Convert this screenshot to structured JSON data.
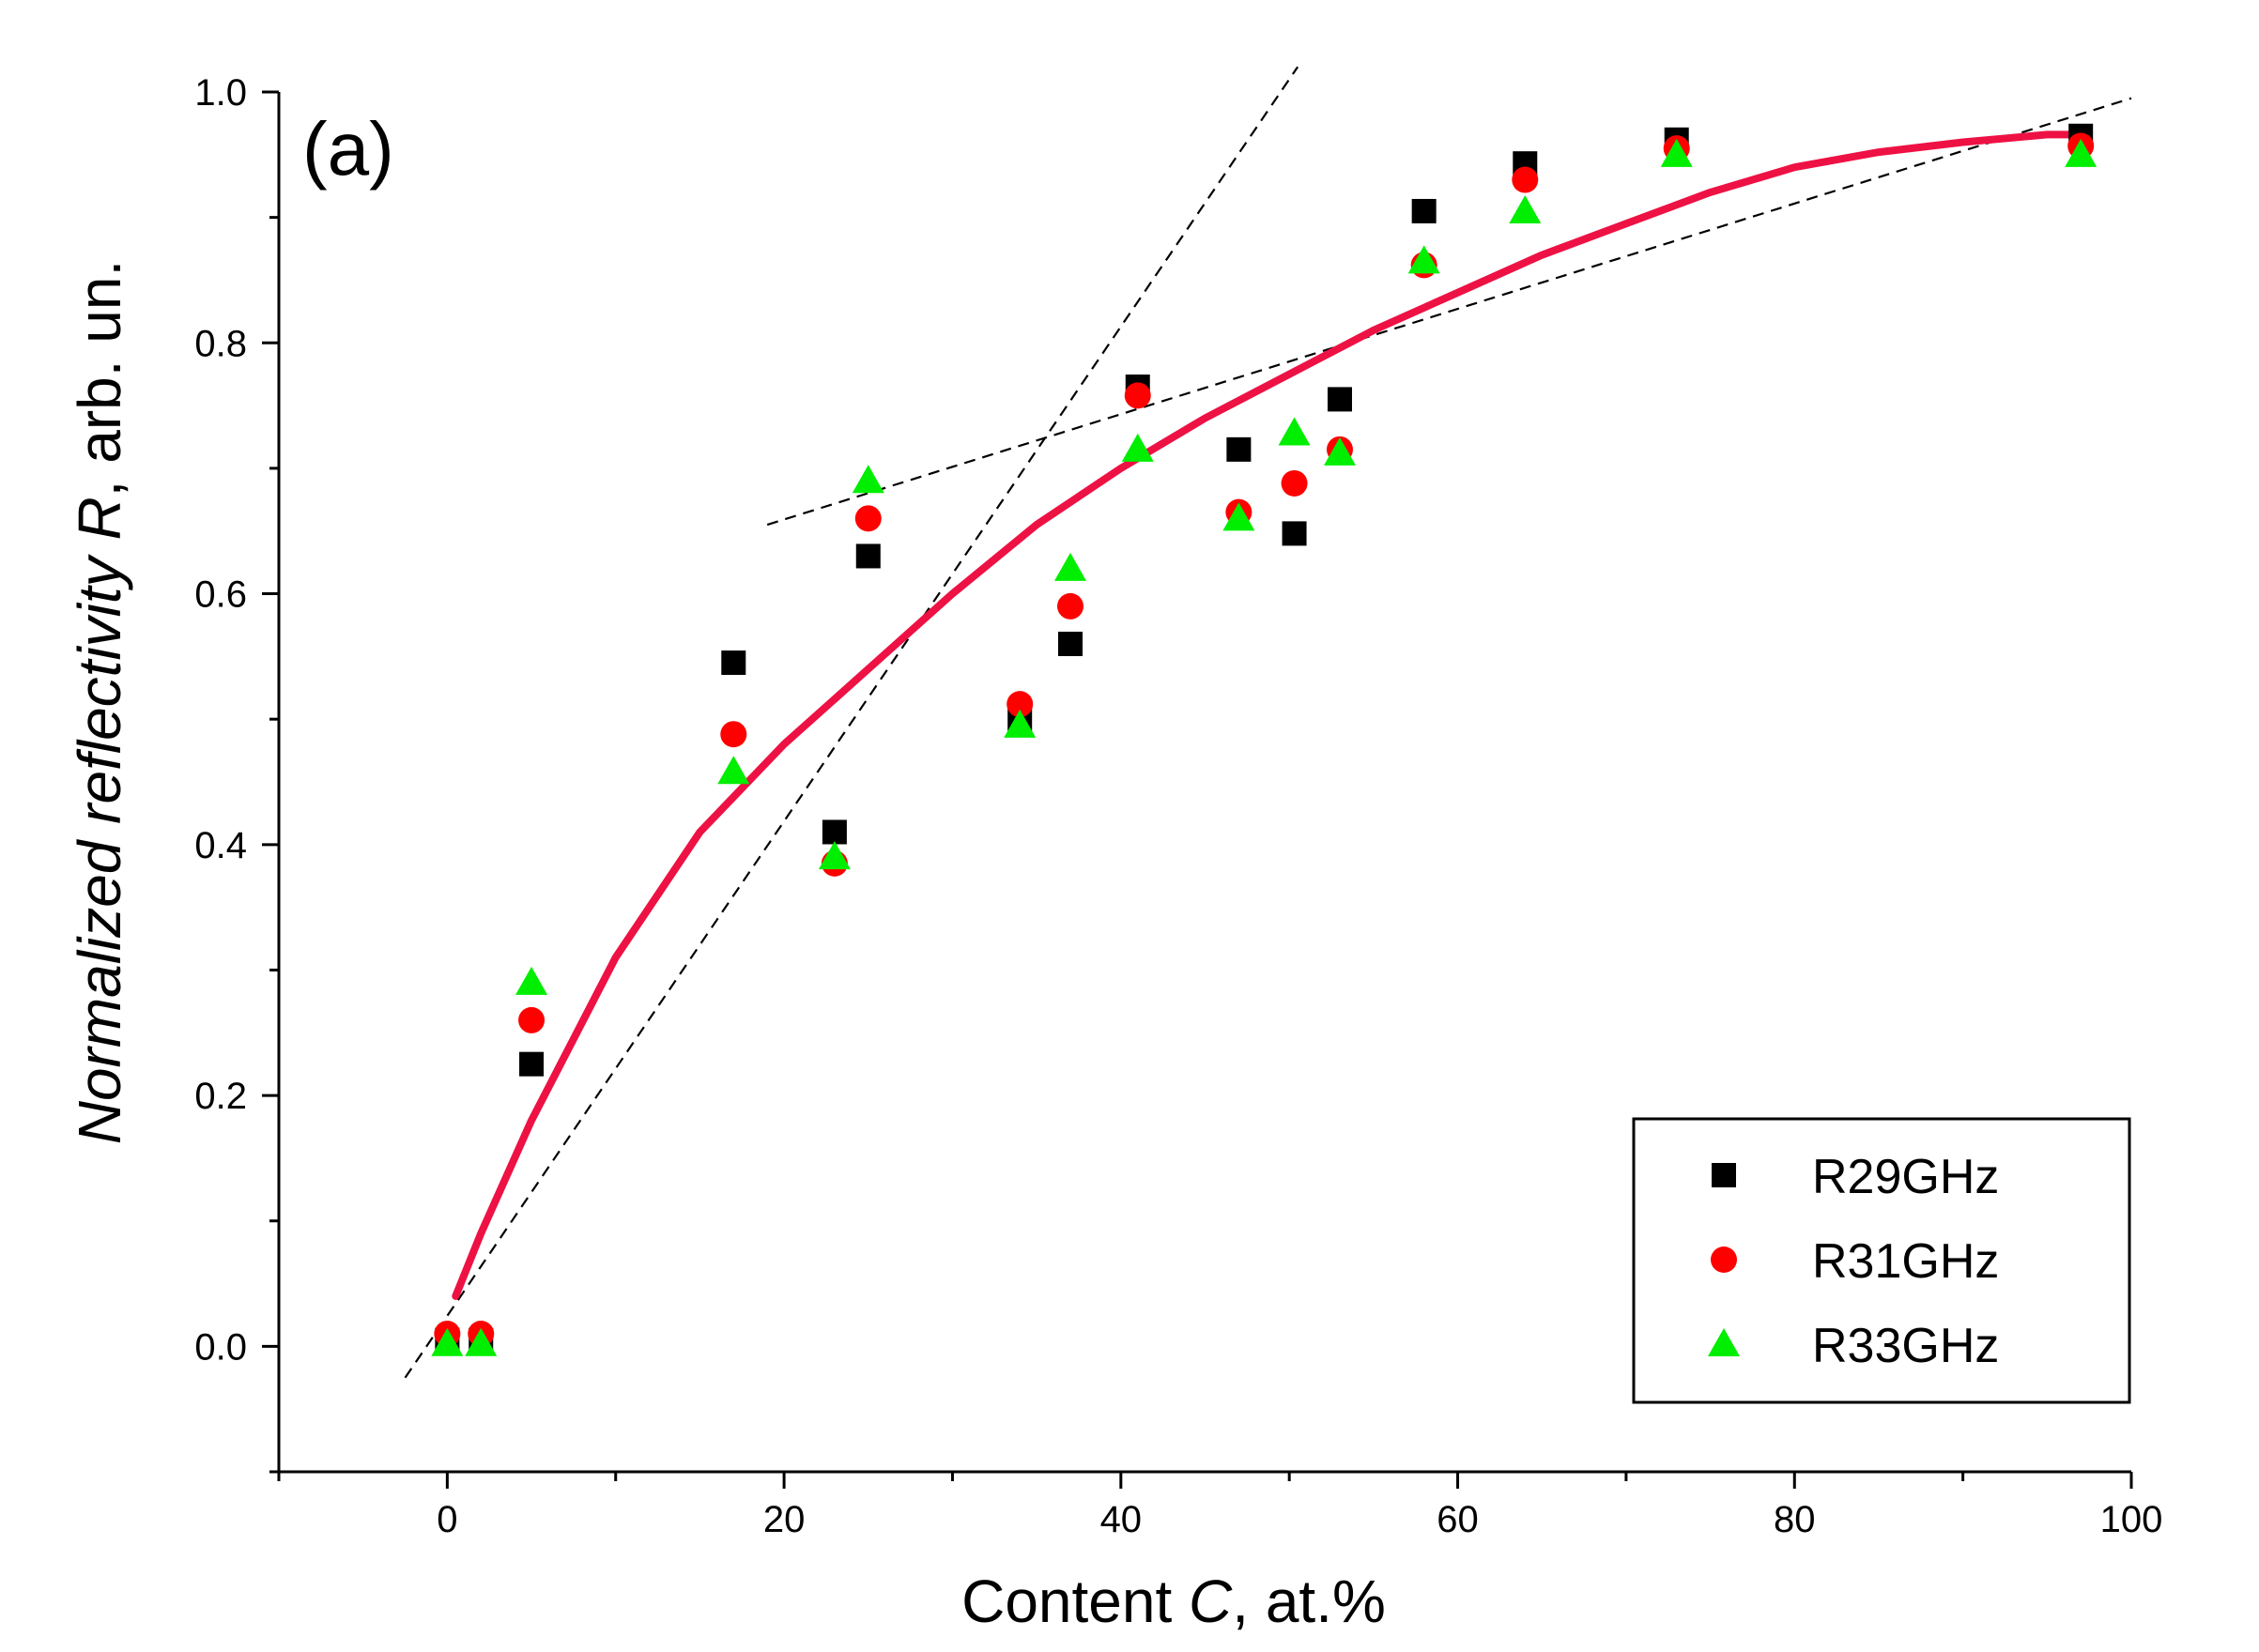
{
  "chart_data": {
    "type": "scatter",
    "panel_label": "(a)",
    "xlabel_prefix": "Content ",
    "xlabel_var": "C",
    "xlabel_suffix": ", at.%",
    "ylabel_prefix": "Normalized reflectivity ",
    "ylabel_var": "R",
    "ylabel_suffix": ", arb. un.",
    "xlim": [
      -10,
      100
    ],
    "ylim": [
      -0.1,
      1.0
    ],
    "x_ticks": [
      0,
      20,
      40,
      60,
      80,
      100
    ],
    "x_tick_labels": [
      "0",
      "20",
      "40",
      "60",
      "80",
      "100"
    ],
    "x_minor_ticks": [
      -10,
      10,
      30,
      50,
      70,
      90
    ],
    "y_ticks": [
      0.0,
      0.2,
      0.4,
      0.6,
      0.8,
      1.0
    ],
    "y_tick_labels": [
      "0.0",
      "0.2",
      "0.4",
      "0.6",
      "0.8",
      "1.0"
    ],
    "y_minor_ticks": [
      -0.1,
      0.1,
      0.3,
      0.5,
      0.7,
      0.9
    ],
    "legend_position": "bottom-right",
    "series": [
      {
        "name": "R29GHz",
        "marker": "square",
        "color": "#000000",
        "points": [
          [
            0,
            0.005
          ],
          [
            2,
            0.005
          ],
          [
            5,
            0.225
          ],
          [
            17,
            0.545
          ],
          [
            23,
            0.41
          ],
          [
            25,
            0.63
          ],
          [
            34,
            0.5
          ],
          [
            37,
            0.56
          ],
          [
            41,
            0.765
          ],
          [
            47,
            0.715
          ],
          [
            50.3,
            0.648
          ],
          [
            53,
            0.755
          ],
          [
            58,
            0.905
          ],
          [
            64,
            0.943
          ],
          [
            73,
            0.962
          ],
          [
            97,
            0.965
          ]
        ]
      },
      {
        "name": "R31GHz",
        "marker": "circle",
        "color": "#ff0000",
        "points": [
          [
            0,
            0.01
          ],
          [
            2,
            0.01
          ],
          [
            5,
            0.26
          ],
          [
            17,
            0.488
          ],
          [
            23,
            0.385
          ],
          [
            25,
            0.66
          ],
          [
            34,
            0.512
          ],
          [
            37,
            0.59
          ],
          [
            41,
            0.758
          ],
          [
            47,
            0.665
          ],
          [
            50.3,
            0.688
          ],
          [
            53,
            0.715
          ],
          [
            58,
            0.862
          ],
          [
            64,
            0.93
          ],
          [
            73,
            0.955
          ],
          [
            97,
            0.957
          ]
        ]
      },
      {
        "name": "R33GHz",
        "marker": "triangle",
        "color": "#00ee00",
        "points": [
          [
            0,
            0.002
          ],
          [
            2,
            0.002
          ],
          [
            5,
            0.29
          ],
          [
            17,
            0.458
          ],
          [
            23,
            0.39
          ],
          [
            25,
            0.69
          ],
          [
            34,
            0.495
          ],
          [
            37,
            0.62
          ],
          [
            41,
            0.715
          ],
          [
            47,
            0.66
          ],
          [
            50.3,
            0.728
          ],
          [
            53,
            0.712
          ],
          [
            58,
            0.865
          ],
          [
            64,
            0.905
          ],
          [
            73,
            0.95
          ],
          [
            97,
            0.95
          ]
        ]
      }
    ],
    "fit_curve": {
      "color": "#ee1144",
      "points": [
        [
          0.5,
          0.04
        ],
        [
          2,
          0.09
        ],
        [
          5,
          0.18
        ],
        [
          10,
          0.31
        ],
        [
          15,
          0.41
        ],
        [
          20,
          0.48
        ],
        [
          25,
          0.54
        ],
        [
          30,
          0.6
        ],
        [
          35,
          0.655
        ],
        [
          40,
          0.7
        ],
        [
          45,
          0.74
        ],
        [
          50,
          0.775
        ],
        [
          55,
          0.81
        ],
        [
          60,
          0.84
        ],
        [
          65,
          0.87
        ],
        [
          70,
          0.895
        ],
        [
          75,
          0.92
        ],
        [
          80,
          0.94
        ],
        [
          85,
          0.952
        ],
        [
          90,
          0.96
        ],
        [
          95,
          0.966
        ],
        [
          97,
          0.966
        ]
      ]
    },
    "dashed_lines": [
      {
        "from": [
          -2.5,
          -0.025
        ],
        "to": [
          50.5,
          1.02
        ]
      },
      {
        "from": [
          19,
          0.655
        ],
        "to": [
          100,
          0.995
        ]
      }
    ]
  }
}
